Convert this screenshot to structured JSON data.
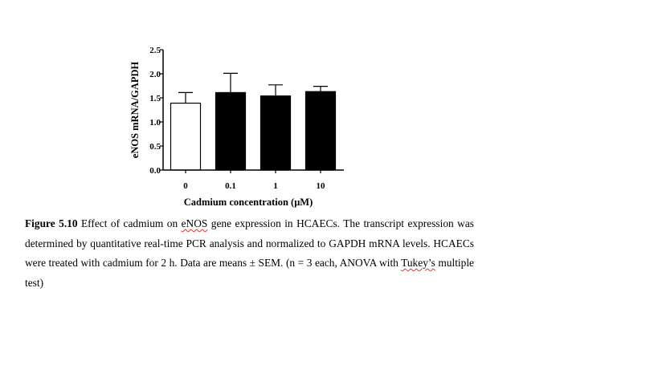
{
  "chart_data": {
    "type": "bar",
    "categories": [
      "0",
      "0.1",
      "1",
      "10"
    ],
    "values": [
      1.39,
      1.61,
      1.54,
      1.63
    ],
    "errors": [
      0.22,
      0.4,
      0.23,
      0.11
    ],
    "bar_colors": [
      "#ffffff",
      "#000000",
      "#000000",
      "#000000"
    ],
    "xlabel": "Cadmium concentration (μM)",
    "ylabel": "eNOS mRNA/GAPDH",
    "ylim": [
      0,
      2.5
    ],
    "yticks": [
      "0.0",
      "0.5",
      "1.0",
      "1.5",
      "2.0",
      "2.5"
    ],
    "grid": false
  },
  "caption": {
    "label": "Figure 5.10",
    "part1": " Effect of cadmium on ",
    "enos": "eNOS",
    "part2": " gene expression in HCAECs. The transcript expression was determined by quantitative real-time PCR analysis and normalized to GAPDH mRNA levels. HCAECs were treated with cadmium for 2 h. Data are means ± SEM. (n = 3 each, ANOVA with ",
    "tukey": "Tukey’s",
    "part3": " multiple test)"
  }
}
